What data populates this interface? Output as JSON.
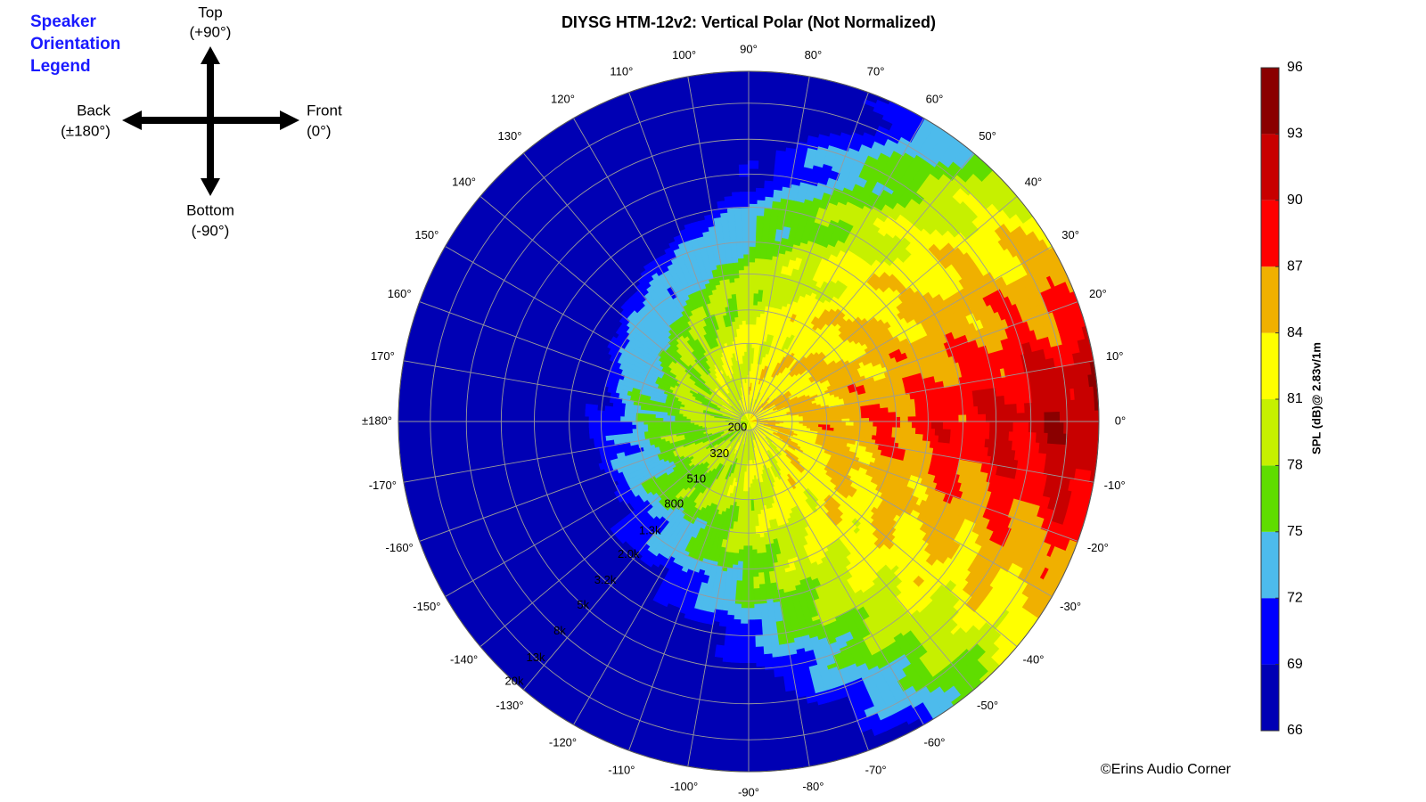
{
  "chart_data": {
    "type": "polar-contour",
    "title": "DIYSG HTM-12v2: Vertical Polar (Not Normalized)",
    "orientation_legend": {
      "title": [
        "Speaker",
        "Orientation",
        "Legend"
      ],
      "top": "Top",
      "top_angle": "(+90°)",
      "back": "Back",
      "back_angle": "(±180°)",
      "front": "Front",
      "front_angle": "(0°)",
      "bottom": "Bottom",
      "bottom_angle": "(-90°)"
    },
    "theta_ticks": [
      {
        "value": 0,
        "label": "0°"
      },
      {
        "value": 10,
        "label": "10°"
      },
      {
        "value": 20,
        "label": "20°"
      },
      {
        "value": 30,
        "label": "30°"
      },
      {
        "value": 40,
        "label": "40°"
      },
      {
        "value": 50,
        "label": "50°"
      },
      {
        "value": 60,
        "label": "60°"
      },
      {
        "value": 70,
        "label": "70°"
      },
      {
        "value": 80,
        "label": "80°"
      },
      {
        "value": 90,
        "label": "90°"
      },
      {
        "value": 100,
        "label": "100°"
      },
      {
        "value": 110,
        "label": "110°"
      },
      {
        "value": 120,
        "label": "120°"
      },
      {
        "value": 130,
        "label": "130°"
      },
      {
        "value": 140,
        "label": "140°"
      },
      {
        "value": 150,
        "label": "150°"
      },
      {
        "value": 160,
        "label": "160°"
      },
      {
        "value": 170,
        "label": "170°"
      },
      {
        "value": 180,
        "label": "±180°"
      },
      {
        "value": -170,
        "label": "-170°"
      },
      {
        "value": -160,
        "label": "-160°"
      },
      {
        "value": -150,
        "label": "-150°"
      },
      {
        "value": -140,
        "label": "-140°"
      },
      {
        "value": -130,
        "label": "-130°"
      },
      {
        "value": -120,
        "label": "-120°"
      },
      {
        "value": -110,
        "label": "-110°"
      },
      {
        "value": -100,
        "label": "-100°"
      },
      {
        "value": -90,
        "label": "-90°"
      },
      {
        "value": -80,
        "label": "-80°"
      },
      {
        "value": -70,
        "label": "-70°"
      },
      {
        "value": -60,
        "label": "-60°"
      },
      {
        "value": -50,
        "label": "-50°"
      },
      {
        "value": -40,
        "label": "-40°"
      },
      {
        "value": -30,
        "label": "-30°"
      },
      {
        "value": -20,
        "label": "-20°"
      },
      {
        "value": -10,
        "label": "-10°"
      }
    ],
    "r_log": true,
    "rlim": [
      200,
      20000
    ],
    "rticks": [
      200,
      320,
      510,
      800,
      {
        "value": 1300,
        "label": "1.3k"
      },
      {
        "value": 2000,
        "label": "2.0k"
      },
      {
        "value": 3200,
        "label": "3.2k"
      },
      {
        "value": 5000,
        "label": "5k"
      },
      {
        "value": 8000,
        "label": "8k"
      },
      {
        "value": 13000,
        "label": "13k"
      },
      {
        "value": 20000,
        "label": "20k"
      }
    ],
    "grid": true,
    "colorbar": {
      "label": "SPL (dB)@ 2.83v/1m",
      "lim": [
        66,
        96
      ],
      "ticks": [
        66,
        69,
        72,
        75,
        78,
        81,
        84,
        87,
        90,
        93,
        96
      ],
      "colors": [
        "#0000b4",
        "#0000ff",
        "#4dbbec",
        "#5fdd00",
        "#c6f000",
        "#ffff00",
        "#f0b000",
        "#ff0000",
        "#c80000",
        "#8a0000"
      ]
    },
    "credit": "©Erins Audio Corner"
  }
}
